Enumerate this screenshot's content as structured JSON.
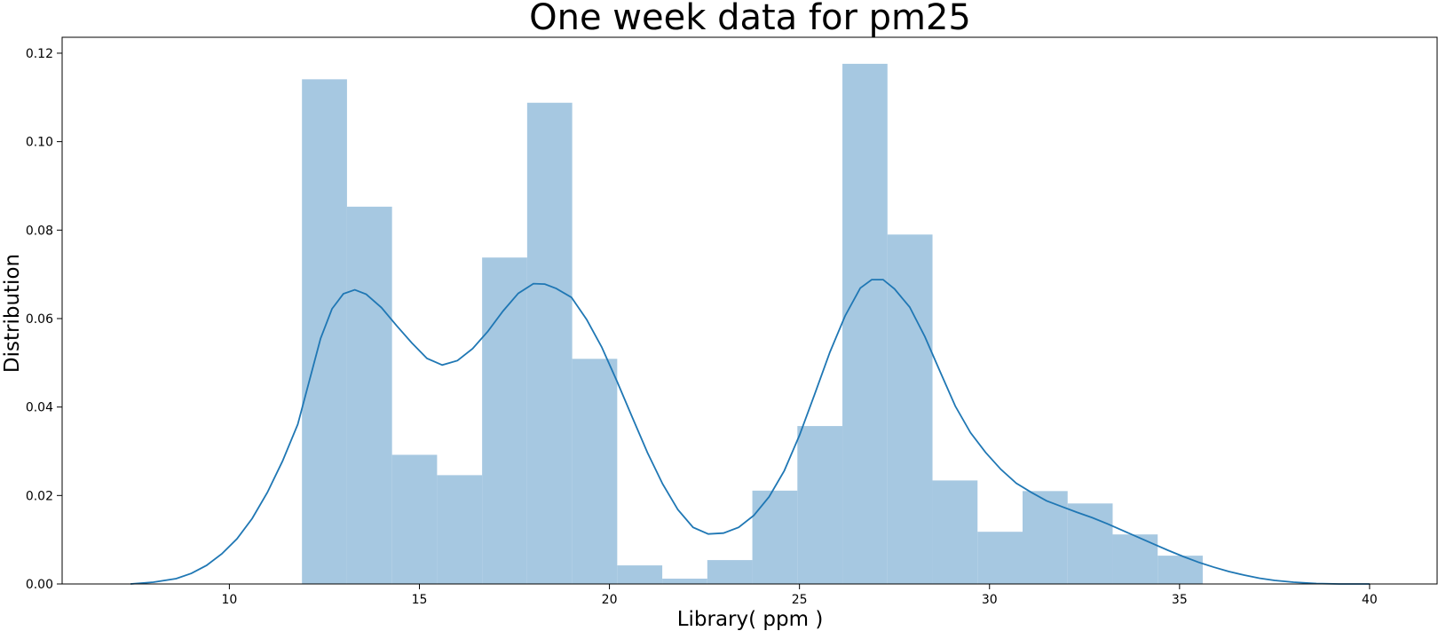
{
  "chart_data": {
    "type": "bar",
    "title": "One week data for pm25",
    "xlabel": "Library( ppm )",
    "ylabel": "Distribution",
    "xlim": [
      5.6,
      41.8
    ],
    "ylim": [
      0,
      0.1236
    ],
    "grid": false,
    "xticks": [
      10,
      15,
      20,
      25,
      30,
      35,
      40
    ],
    "yticks": [
      0.0,
      0.02,
      0.04,
      0.06,
      0.08,
      0.1,
      0.12
    ],
    "ytick_labels": [
      "0.00",
      "0.02",
      "0.04",
      "0.06",
      "0.08",
      "0.10",
      "0.12"
    ],
    "colors": {
      "bars": "#a6c8e1",
      "kde": "#1f77b4"
    },
    "histogram": {
      "bin_edges": [
        11.91,
        13.095,
        14.28,
        15.465,
        16.65,
        17.835,
        19.02,
        20.205,
        21.39,
        22.575,
        23.76,
        24.945,
        26.13,
        27.315,
        28.5,
        29.685,
        30.87,
        32.055,
        33.24,
        34.425,
        35.61
      ],
      "values": [
        0.1141,
        0.0853,
        0.0292,
        0.0246,
        0.0738,
        0.1088,
        0.0509,
        0.0042,
        0.0012,
        0.0054,
        0.0211,
        0.0357,
        0.1176,
        0.079,
        0.0234,
        0.0118,
        0.021,
        0.0182,
        0.0112,
        0.0064
      ]
    },
    "kde": {
      "x": [
        7.4,
        8.0,
        8.6,
        9.0,
        9.4,
        9.8,
        10.2,
        10.6,
        11.0,
        11.4,
        11.8,
        12.1,
        12.4,
        12.7,
        13.0,
        13.3,
        13.6,
        14.0,
        14.4,
        14.8,
        15.2,
        15.6,
        16.0,
        16.4,
        16.8,
        17.2,
        17.6,
        18.0,
        18.3,
        18.6,
        19.0,
        19.4,
        19.8,
        20.2,
        20.6,
        21.0,
        21.4,
        21.8,
        22.2,
        22.6,
        23.0,
        23.4,
        23.8,
        24.2,
        24.6,
        25.0,
        25.4,
        25.8,
        26.2,
        26.6,
        26.9,
        27.2,
        27.5,
        27.9,
        28.3,
        28.7,
        29.1,
        29.5,
        29.9,
        30.3,
        30.7,
        31.1,
        31.5,
        31.9,
        32.3,
        32.7,
        33.1,
        33.5,
        33.9,
        34.3,
        34.7,
        35.1,
        35.5,
        35.9,
        36.3,
        36.7,
        37.1,
        37.5,
        38.0,
        38.6,
        39.2,
        40.0
      ],
      "y": [
        0.0,
        0.0004,
        0.0012,
        0.0024,
        0.0042,
        0.0068,
        0.0102,
        0.0148,
        0.0207,
        0.0278,
        0.0361,
        0.0458,
        0.0555,
        0.0622,
        0.0656,
        0.0665,
        0.0655,
        0.0625,
        0.0584,
        0.0545,
        0.051,
        0.0495,
        0.0505,
        0.0532,
        0.0571,
        0.0617,
        0.0657,
        0.0679,
        0.0678,
        0.0668,
        0.0648,
        0.0598,
        0.0535,
        0.0458,
        0.0377,
        0.0297,
        0.0226,
        0.0168,
        0.0128,
        0.0113,
        0.0115,
        0.0128,
        0.0155,
        0.0197,
        0.0256,
        0.0336,
        0.0429,
        0.0524,
        0.0606,
        0.0669,
        0.0688,
        0.0688,
        0.0667,
        0.0626,
        0.0559,
        0.048,
        0.0402,
        0.0342,
        0.0297,
        0.0259,
        0.0228,
        0.0207,
        0.0188,
        0.0175,
        0.0162,
        0.015,
        0.0136,
        0.0121,
        0.0106,
        0.0091,
        0.0076,
        0.0062,
        0.0049,
        0.0038,
        0.0028,
        0.002,
        0.0013,
        0.0008,
        0.0004,
        0.0001,
        0.0,
        0.0
      ]
    }
  }
}
